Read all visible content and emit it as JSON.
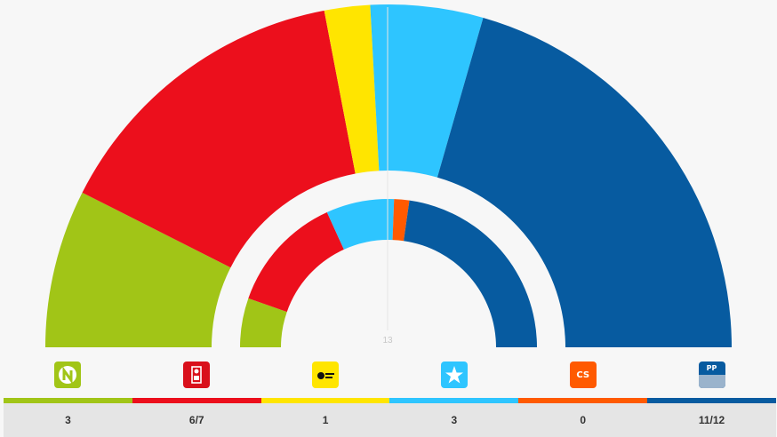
{
  "chart_data": {
    "type": "pie",
    "variant": "double-semicircle",
    "center_label": "13",
    "outer_ring": {
      "slices": [
        {
          "party": "NC",
          "share": 0.149,
          "color": "#a1c517"
        },
        {
          "party": "PSOE",
          "share": 0.291,
          "color": "#ec0f1c"
        },
        {
          "party": "AHI-AMF",
          "share": 0.043,
          "color": "#ffe500"
        },
        {
          "party": "CC",
          "share": 0.106,
          "color": "#2ec5ff"
        },
        {
          "party": "PP-AV",
          "share": 0.411,
          "color": "#075ba0"
        }
      ]
    },
    "inner_ring": {
      "slices": [
        {
          "party": "NC",
          "share": 0.107,
          "color": "#a1c517"
        },
        {
          "party": "PSOE",
          "share": 0.257,
          "color": "#ec0f1c"
        },
        {
          "party": "CC",
          "share": 0.148,
          "color": "#2ec5ff"
        },
        {
          "party": "Cs",
          "share": 0.033,
          "color": "#ff5a00"
        },
        {
          "party": "PP",
          "share": 0.455,
          "color": "#075ba0"
        }
      ]
    },
    "parties": [
      {
        "id": "nc",
        "icon": "nc-logo-icon",
        "color": "#a1c517",
        "seats": "3",
        "logo_text": "N"
      },
      {
        "id": "psoe",
        "icon": "psoe-logo-icon",
        "color": "#ec0f1c",
        "seats": "6/7",
        "logo_text": ""
      },
      {
        "id": "ahi",
        "icon": "ahi-logo-icon",
        "color": "#ffe500",
        "seats": "1",
        "logo_text": ""
      },
      {
        "id": "cc",
        "icon": "cc-logo-icon",
        "color": "#2ec5ff",
        "seats": "3",
        "logo_text": ""
      },
      {
        "id": "cs",
        "icon": "cs-logo-icon",
        "color": "#ff5a00",
        "seats": "0",
        "logo_text": "CS"
      },
      {
        "id": "pp",
        "icon": "pp-logo-icon",
        "color": "#075ba0",
        "seats": "11/12",
        "logo_text": "PP"
      }
    ]
  }
}
